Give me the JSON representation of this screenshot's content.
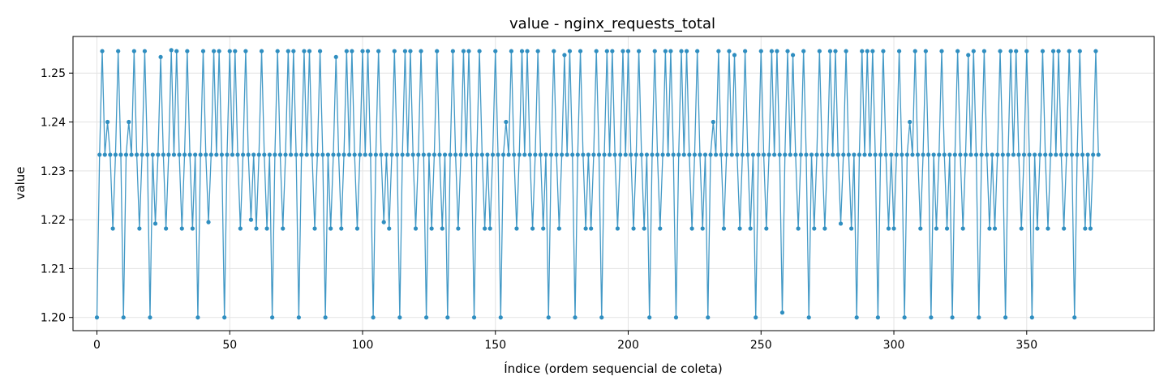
{
  "chart_data": {
    "type": "line",
    "title": "value - nginx_requests_total",
    "xlabel": "Índice (ordem sequencial de coleta)",
    "ylabel": "value",
    "xlim": [
      -9,
      398
    ],
    "ylim": [
      1.1973,
      1.2575
    ],
    "xticks": [
      0,
      50,
      100,
      150,
      200,
      250,
      300,
      350
    ],
    "yticks": [
      1.2,
      1.21,
      1.22,
      1.23,
      1.24,
      1.25
    ],
    "ytick_labels": [
      "1.20",
      "1.21",
      "1.22",
      "1.23",
      "1.24",
      "1.25"
    ],
    "grid": true,
    "marker": "circle",
    "series": [
      {
        "color": "#2f8ec0",
        "x_start": 0,
        "x_step": 1,
        "values": [
          1.2,
          1.2333,
          1.2545,
          1.2333,
          1.24,
          1.2333,
          1.2182,
          1.2333,
          1.2545,
          1.2333,
          1.2,
          1.2333,
          1.24,
          1.2333,
          1.2545,
          1.2333,
          1.2182,
          1.2333,
          1.2545,
          1.2333,
          1.2,
          1.2333,
          1.2192,
          1.2333,
          1.2533,
          1.2333,
          1.2182,
          1.2333,
          1.2547,
          1.2333,
          1.2545,
          1.2333,
          1.2182,
          1.2333,
          1.2545,
          1.2333,
          1.2182,
          1.2333,
          1.2,
          1.2333,
          1.2545,
          1.2333,
          1.2195,
          1.2333,
          1.2545,
          1.2333,
          1.2545,
          1.2333,
          1.2,
          1.2333,
          1.2545,
          1.2333,
          1.2545,
          1.2333,
          1.2182,
          1.2333,
          1.2545,
          1.2333,
          1.22,
          1.2333,
          1.2182,
          1.2333,
          1.2545,
          1.2333,
          1.2182,
          1.2333,
          1.2,
          1.2333,
          1.2545,
          1.2333,
          1.2182,
          1.2333,
          1.2545,
          1.2333,
          1.2545,
          1.2333,
          1.2,
          1.2333,
          1.2545,
          1.2333,
          1.2545,
          1.2333,
          1.2182,
          1.2333,
          1.2545,
          1.2333,
          1.2,
          1.2333,
          1.2182,
          1.2333,
          1.2533,
          1.2333,
          1.2182,
          1.2333,
          1.2545,
          1.2333,
          1.2545,
          1.2333,
          1.2182,
          1.2333,
          1.2545,
          1.2333,
          1.2545,
          1.2333,
          1.2,
          1.2333,
          1.2545,
          1.2333,
          1.2195,
          1.2333,
          1.2182,
          1.2333,
          1.2545,
          1.2333,
          1.2,
          1.2333,
          1.2545,
          1.2333,
          1.2545,
          1.2333,
          1.2182,
          1.2333,
          1.2545,
          1.2333,
          1.2,
          1.2333,
          1.2182,
          1.2333,
          1.2545,
          1.2333,
          1.2182,
          1.2333,
          1.2,
          1.2333,
          1.2545,
          1.2333,
          1.2182,
          1.2333,
          1.2545,
          1.2333,
          1.2545,
          1.2333,
          1.2,
          1.2333,
          1.2545,
          1.2333,
          1.2182,
          1.2333,
          1.2182,
          1.2333,
          1.2545,
          1.2333,
          1.2,
          1.2333,
          1.24,
          1.2333,
          1.2545,
          1.2333,
          1.2182,
          1.2333,
          1.2545,
          1.2333,
          1.2545,
          1.2333,
          1.2182,
          1.2333,
          1.2545,
          1.2333,
          1.2182,
          1.2333,
          1.2,
          1.2333,
          1.2545,
          1.2333,
          1.2182,
          1.2333,
          1.2537,
          1.2333,
          1.2545,
          1.2333,
          1.2,
          1.2333,
          1.2545,
          1.2333,
          1.2182,
          1.2333,
          1.2182,
          1.2333,
          1.2545,
          1.2333,
          1.2,
          1.2333,
          1.2545,
          1.2333,
          1.2545,
          1.2333,
          1.2182,
          1.2333,
          1.2545,
          1.2333,
          1.2545,
          1.2333,
          1.2182,
          1.2333,
          1.2545,
          1.2333,
          1.2182,
          1.2333,
          1.2,
          1.2333,
          1.2545,
          1.2333,
          1.2182,
          1.2333,
          1.2545,
          1.2333,
          1.2545,
          1.2333,
          1.2,
          1.2333,
          1.2545,
          1.2333,
          1.2545,
          1.2333,
          1.2182,
          1.2333,
          1.2545,
          1.2333,
          1.2182,
          1.2333,
          1.2,
          1.2333,
          1.24,
          1.2333,
          1.2545,
          1.2333,
          1.2182,
          1.2333,
          1.2545,
          1.2333,
          1.2537,
          1.2333,
          1.2182,
          1.2333,
          1.2545,
          1.2333,
          1.2182,
          1.2333,
          1.2,
          1.2333,
          1.2545,
          1.2333,
          1.2182,
          1.2333,
          1.2545,
          1.2333,
          1.2545,
          1.2333,
          1.201,
          1.2333,
          1.2545,
          1.2333,
          1.2537,
          1.2333,
          1.2182,
          1.2333,
          1.2545,
          1.2333,
          1.2,
          1.2333,
          1.2182,
          1.2333,
          1.2545,
          1.2333,
          1.2182,
          1.2333,
          1.2545,
          1.2333,
          1.2545,
          1.2333,
          1.2192,
          1.2333,
          1.2545,
          1.2333,
          1.2182,
          1.2333,
          1.2,
          1.2333,
          1.2545,
          1.2333,
          1.2545,
          1.2333,
          1.2545,
          1.2333,
          1.2,
          1.2333,
          1.2545,
          1.2333,
          1.2182,
          1.2333,
          1.2182,
          1.2333,
          1.2545,
          1.2333,
          1.2,
          1.2333,
          1.24,
          1.2333,
          1.2545,
          1.2333,
          1.2182,
          1.2333,
          1.2545,
          1.2333,
          1.2,
          1.2333,
          1.2182,
          1.2333,
          1.2545,
          1.2333,
          1.2182,
          1.2333,
          1.2,
          1.2333,
          1.2545,
          1.2333,
          1.2182,
          1.2333,
          1.2537,
          1.2333,
          1.2545,
          1.2333,
          1.2,
          1.2333,
          1.2545,
          1.2333,
          1.2182,
          1.2333,
          1.2182,
          1.2333,
          1.2545,
          1.2333,
          1.2,
          1.2333,
          1.2545,
          1.2333,
          1.2545,
          1.2333,
          1.2182,
          1.2333,
          1.2545,
          1.2333,
          1.2,
          1.2333,
          1.2182,
          1.2333,
          1.2545,
          1.2333,
          1.2182,
          1.2333,
          1.2545,
          1.2333,
          1.2545,
          1.2333,
          1.2182,
          1.2333,
          1.2545,
          1.2333,
          1.2,
          1.2333,
          1.2545,
          1.2333,
          1.2182,
          1.2333,
          1.2182,
          1.2333,
          1.2545,
          1.2333
        ]
      }
    ]
  }
}
